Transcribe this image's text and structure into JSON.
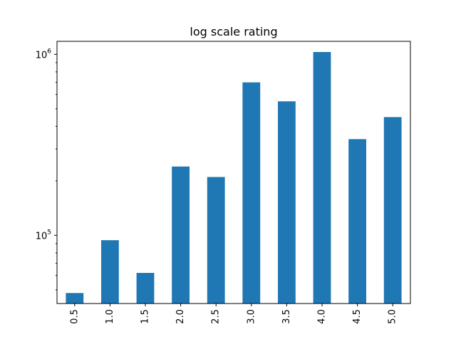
{
  "chart_data": {
    "type": "bar",
    "title": "log scale rating",
    "xlabel": "",
    "ylabel": "",
    "categories": [
      "0.5",
      "1.0",
      "1.5",
      "2.0",
      "2.5",
      "3.0",
      "3.5",
      "4.0",
      "4.5",
      "5.0"
    ],
    "values": [
      48000,
      94000,
      62000,
      240000,
      210000,
      700000,
      550000,
      1030000,
      340000,
      450000
    ],
    "y_scale": "log",
    "ylim": [
      42000,
      1180000
    ],
    "y_ticks": [
      {
        "value": 100000,
        "base": "10",
        "exp": "5"
      },
      {
        "value": 1000000,
        "base": "10",
        "exp": "6"
      }
    ],
    "x_tick_rotation": "vertical",
    "bar_color": "#1f77b4",
    "grid": false,
    "legend": "none"
  }
}
